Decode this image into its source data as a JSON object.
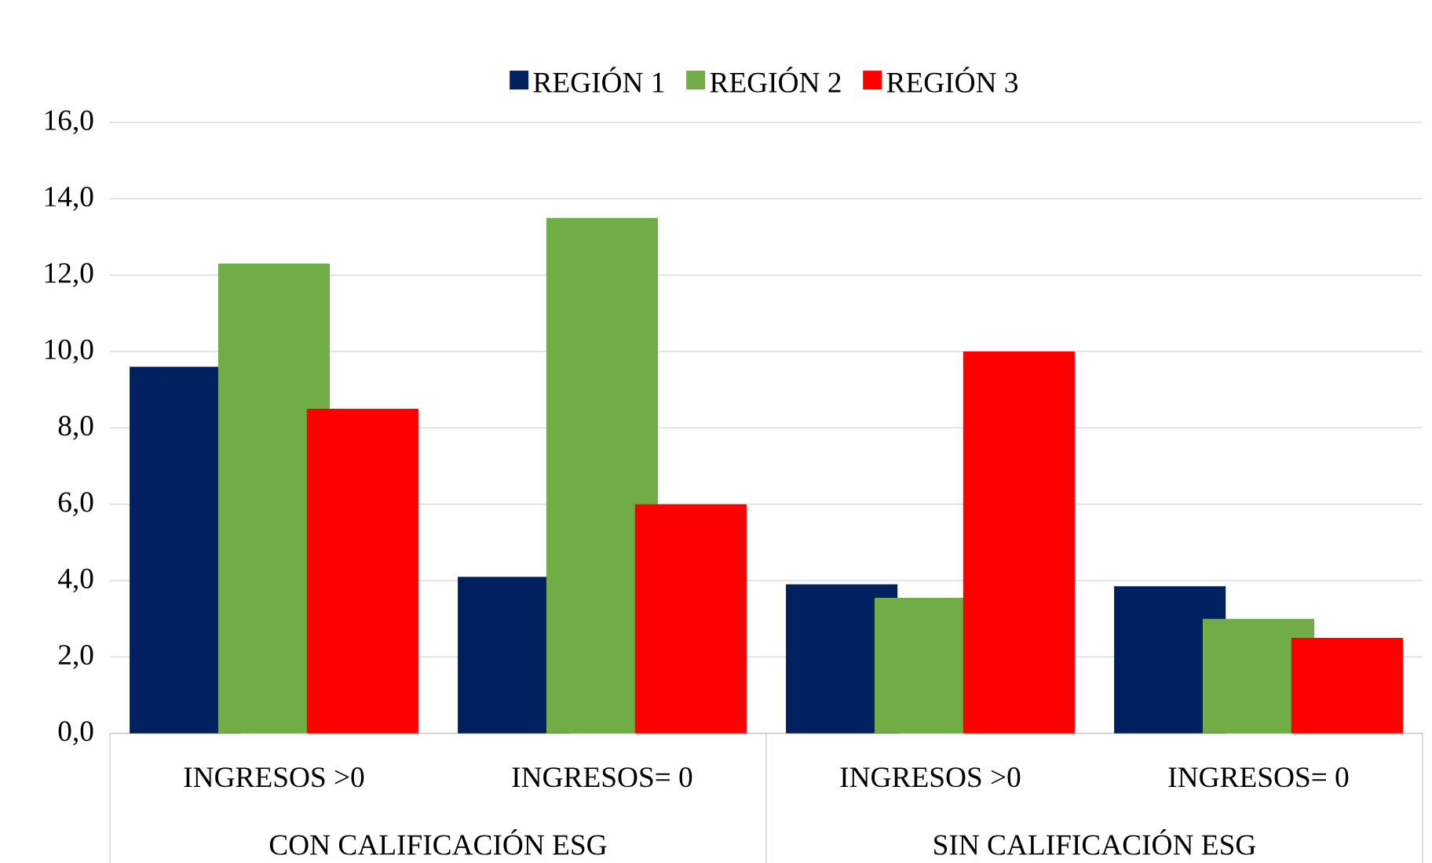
{
  "chart_data": {
    "type": "bar",
    "categories": [
      "INGRESOS >0",
      "INGRESOS= 0",
      "INGRESOS >0",
      "INGRESOS= 0"
    ],
    "series": [
      {
        "name": "REGIÓN 1",
        "color": "#002060",
        "values": [
          9.6,
          4.1,
          3.9,
          3.85
        ]
      },
      {
        "name": "REGIÓN 2",
        "color": "#70ad47",
        "values": [
          12.3,
          13.5,
          3.55,
          3.0
        ]
      },
      {
        "name": "REGIÓN 3",
        "color": "#ff0000",
        "values": [
          8.5,
          6.0,
          10.0,
          2.5
        ]
      }
    ],
    "ylim": [
      0,
      16
    ],
    "yticks": [
      {
        "value": 0,
        "label": "0,0"
      },
      {
        "value": 2,
        "label": "2,0"
      },
      {
        "value": 4,
        "label": "4,0"
      },
      {
        "value": 6,
        "label": "6,0"
      },
      {
        "value": 8,
        "label": "8,0"
      },
      {
        "value": 10,
        "label": "10,0"
      },
      {
        "value": 12,
        "label": "12,0"
      },
      {
        "value": 14,
        "label": "14,0"
      },
      {
        "value": 16,
        "label": "16,0"
      }
    ],
    "annotations": [
      "CON CALIFICACIÓN ESG",
      "SIN CALIFICACIÓN ESG"
    ],
    "grid": "y",
    "legend": "top"
  }
}
